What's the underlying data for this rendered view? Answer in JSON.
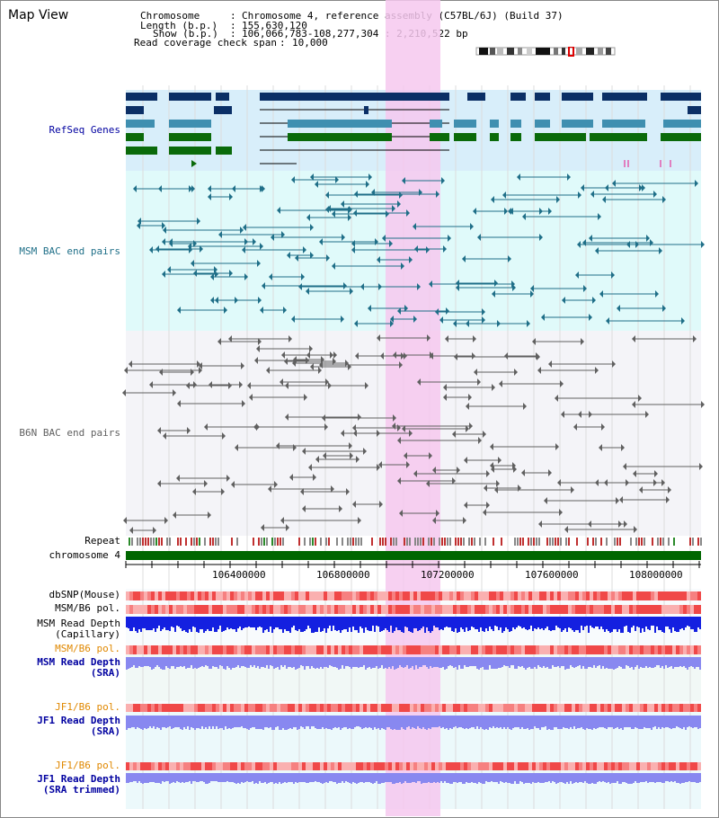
{
  "title": "Map View",
  "info": {
    "chromosome_key": "Chromosome",
    "chromosome_val": "Chromosome 4, reference assembly (C57BL/6J) (Build 37)",
    "length_key": "Length (b.p.)",
    "length_val": "155,630,120",
    "show_key": "Show (b.p.)",
    "show_val": "106,066,783-108,277,304 : 2,210,522 bp",
    "coverage_key": "Read coverage check span",
    "coverage_val": "10,000"
  },
  "tracks": {
    "refseq": "RefSeq Genes",
    "msm_bac": "MSM BAC end pairs",
    "b6n_bac": "B6N BAC end pairs",
    "repeat": "Repeat",
    "chromosome": "chromosome 4",
    "dbsnp": "dbSNP(Mouse)",
    "msm_b6_pol": "MSM/B6 pol.",
    "msm_depth_cap_1": "MSM Read Depth",
    "msm_depth_cap_2": "(Capillary)",
    "msm_b6_pol_2": "MSM/B6 pol.",
    "msm_depth_sra_1": "MSM Read Depth",
    "msm_depth_sra_2": "(SRA)",
    "jf1_b6_pol": "JF1/B6 pol.",
    "jf1_depth_sra_1": "JF1 Read Depth",
    "jf1_depth_sra_2": "(SRA)",
    "jf1_b6_pol_2": "JF1/B6 pol.",
    "jf1_depth_trim_1": "JF1 Read Depth",
    "jf1_depth_trim_2": "(SRA trimmed)"
  },
  "axis": {
    "ticks": [
      "106400000",
      "106800000",
      "107200000",
      "107600000",
      "108000000"
    ]
  },
  "colors": {
    "highlight": "#f6c8ee",
    "refseq_bg": "#d8eefa",
    "msm_bg": "#e0fafa",
    "gene_dark": "#0b2f66",
    "gene_mid": "#3f8fb0",
    "gene_green": "#0a6a0a",
    "bac_msm": "#1f6f88",
    "bac_b6n": "#606060",
    "depth_blue": "#1420e0",
    "depth_lav": "#8888f0",
    "pol_red": "#f04040",
    "label_blue": "#0000a0",
    "label_orange": "#e08800"
  }
}
